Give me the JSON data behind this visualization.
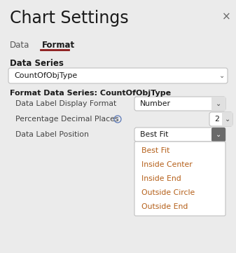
{
  "bg_color": "#ebebeb",
  "white": "#ffffff",
  "title": "Chart Settings",
  "title_fontsize": 17,
  "close_symbol": "×",
  "tab_data": "Data",
  "tab_format": "Format",
  "tab_underline_color": "#8B1A1A",
  "section_label": "Data Series",
  "dropdown1_value": "CountOfObjType",
  "section_label2": "Format Data Series: CountOfObjType",
  "row1_label": "Data Label Display Format",
  "row1_value": "Number",
  "row2_label": "Percentage Decimal Places",
  "row2_value": "2",
  "row3_label": "Data Label Position",
  "row3_value": "Best Fit",
  "dropdown_items": [
    "Best Fit",
    "Inside Center",
    "Inside End",
    "Outside Circle",
    "Outside End"
  ],
  "dropdown_text_color": "#b5601a",
  "border_color": "#c0c0c0",
  "dark_text": "#1a1a1a",
  "medium_text": "#444444",
  "info_icon_color": "#5a78b8",
  "chevron_box_color": "#888888",
  "chevron_box_color2": "#6a6a6a"
}
